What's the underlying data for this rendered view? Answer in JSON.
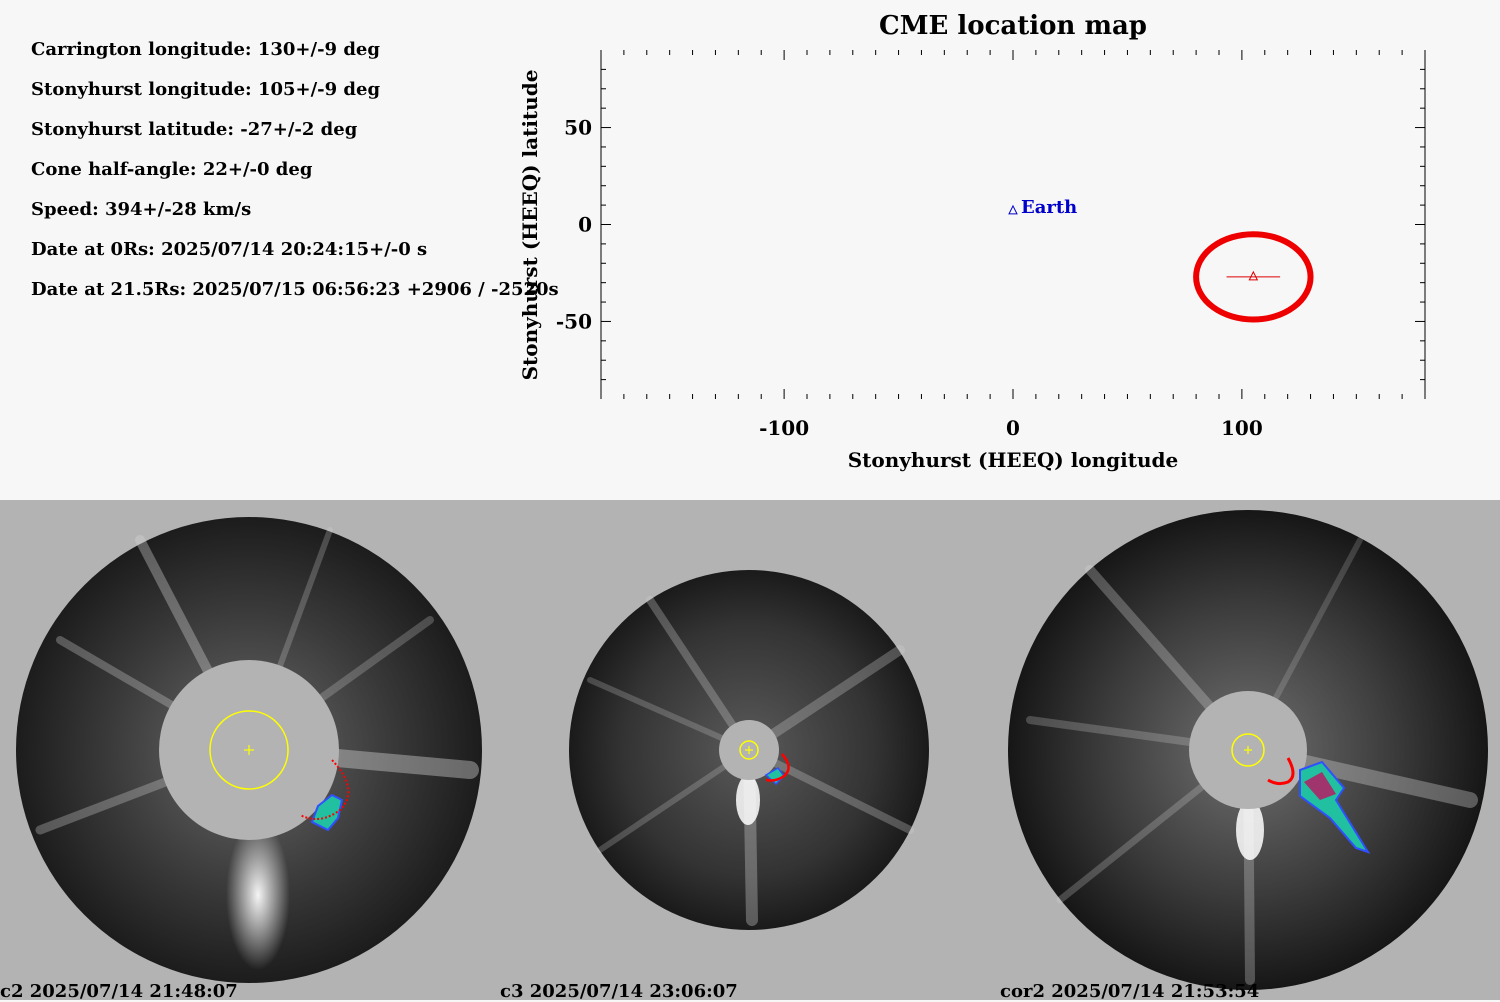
{
  "params": [
    "Carrington longitude: 130+/-9 deg",
    "Stonyhurst longitude: 105+/-9 deg",
    "Stonyhurst latitude: -27+/-2 deg",
    "Cone half-angle: 22+/-0 deg",
    "Speed: 394+/-28 km/s",
    "Date at 0Rs: 2025/07/14 20:24:15+/-0 s",
    "Date at 21.5Rs: 2025/07/15 06:56:23 +2906 / -2520s"
  ],
  "chart_data": {
    "type": "scatter",
    "title": "CME location map",
    "xlabel": "Stonyhurst (HEEQ) longitude",
    "ylabel": "Stonyhurst (HEEQ) latitude",
    "xlim": [
      -180,
      180
    ],
    "ylim": [
      -90,
      90
    ],
    "xticks": [
      -100,
      0,
      100
    ],
    "yticks": [
      50,
      0,
      -50
    ],
    "points": [
      {
        "name": "Earth",
        "x": 0,
        "y": 7,
        "color": "#0000cc",
        "marker": "triangle"
      },
      {
        "name": "",
        "x": 105,
        "y": -27,
        "color": "#dd0000",
        "marker": "triangle",
        "xerr": 9
      }
    ],
    "region": {
      "center_lon": 105,
      "center_lat": -27,
      "half_width_lon": 25,
      "half_height_lat": 22,
      "color": "#ee0000"
    }
  },
  "panels": [
    {
      "id": "c2",
      "caption": "c2 2025/07/14 21:48:07",
      "sun_color": "#ffff00",
      "overlay_color": "#ff0000"
    },
    {
      "id": "c3",
      "caption": "c3 2025/07/14 23:06:07",
      "sun_color": "#ffff00",
      "overlay_color": "#ff0000"
    },
    {
      "id": "cor2",
      "caption": "cor2 2025/07/14 21:53:54",
      "sun_color": "#ffff00",
      "overlay_color": "#ff0000"
    }
  ]
}
